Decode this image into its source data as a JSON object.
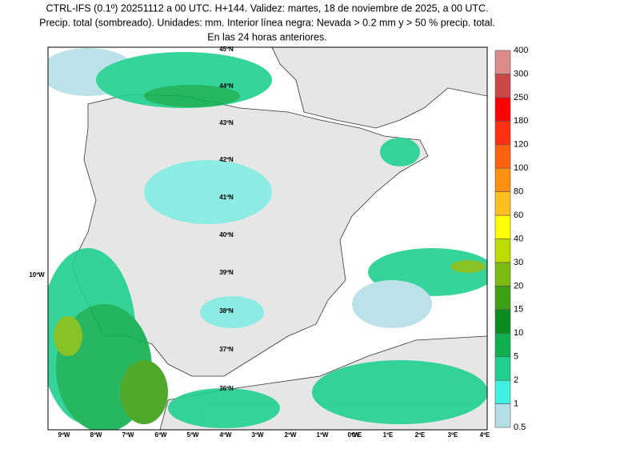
{
  "header": {
    "lines": [
      "CTRL-IFS (0.1º) 20251112 a 00 UTC. H+144. Validez: martes, 18 de noviembre de 2025, a 00 UTC.",
      "Precip. total (sombreado). Unidades: mm. Interior línea negra: Nevada > 0.2 mm y > 50 % precip. total.",
      "En las 24 horas anteriores."
    ]
  },
  "map": {
    "lat_labels": [
      "45ºN",
      "44ºN",
      "43ºN",
      "42ºN",
      "41ºN",
      "40ºN",
      "39ºN",
      "38ºN",
      "37ºN",
      "36ºN"
    ],
    "lon_labels": [
      "9ºW",
      "8ºW",
      "7ºW",
      "6ºW",
      "5ºW",
      "4ºW",
      "3ºW",
      "2ºW",
      "1ºW",
      "0ºW",
      "0ºE",
      "1ºE",
      "2ºE",
      "3ºE",
      "4ºE"
    ],
    "side_label": "10ºW"
  },
  "colorbar": {
    "levels": [
      0.5,
      1,
      2,
      5,
      10,
      15,
      20,
      30,
      40,
      60,
      80,
      100,
      120,
      180,
      250,
      300,
      400
    ],
    "colors": [
      "#b4dfe6",
      "#40f0e0",
      "#20d090",
      "#10b050",
      "#0a8c1e",
      "#3ca014",
      "#7cbc10",
      "#bcdc00",
      "#ffff00",
      "#ffc020",
      "#ff9010",
      "#ff6010",
      "#ff3010",
      "#ff0000",
      "#cc4848",
      "#dc8a8a",
      "#f0c4c4"
    ]
  }
}
